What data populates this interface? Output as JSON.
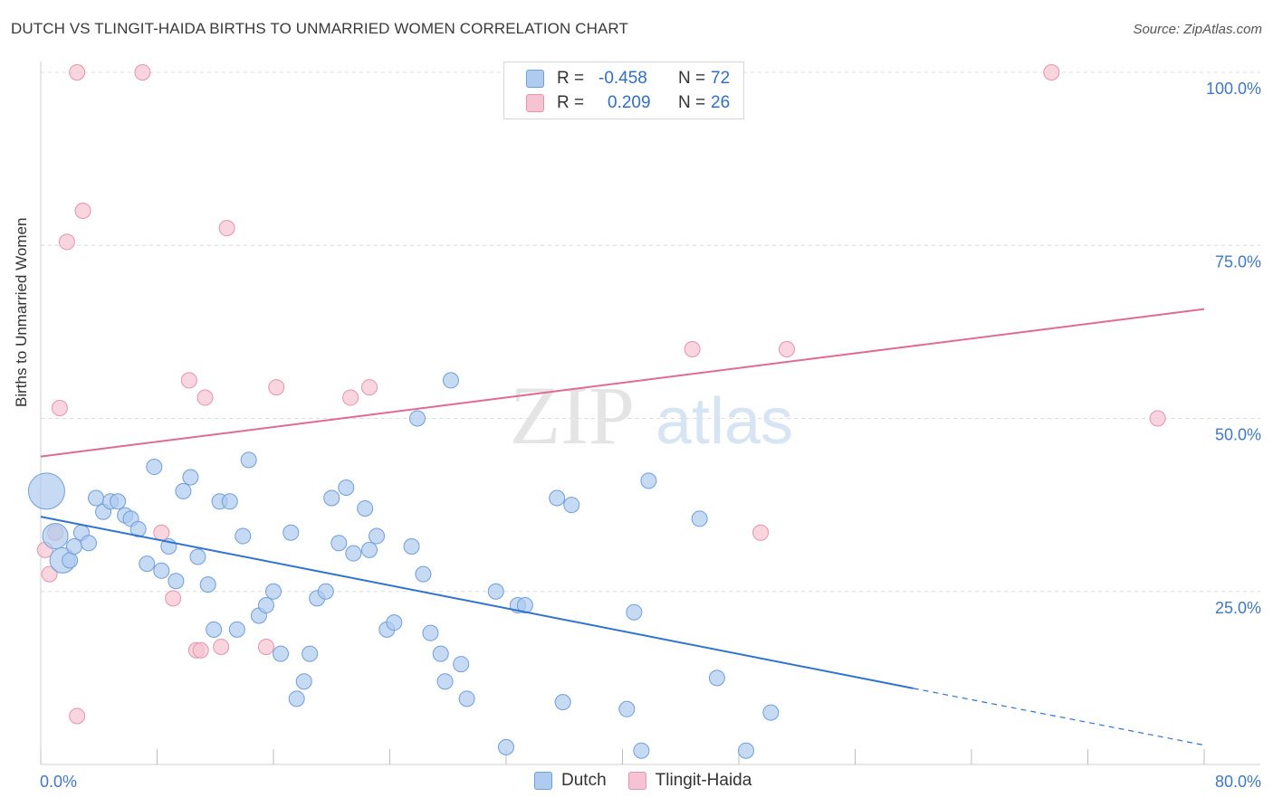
{
  "title": "DUTCH VS TLINGIT-HAIDA BIRTHS TO UNMARRIED WOMEN CORRELATION CHART",
  "source": "Source: ZipAtlas.com",
  "watermark": {
    "zip": "ZIP",
    "atlas": "atlas"
  },
  "legend": {
    "rows": [
      {
        "r_label": "R =",
        "r_value": "-0.458",
        "n_label": "N =",
        "n_value": "72"
      },
      {
        "r_label": "R =",
        "r_value": "0.209",
        "n_label": "N =",
        "n_value": "26"
      }
    ]
  },
  "bottom_legend": {
    "dutch": "Dutch",
    "tlingit": "Tlingit-Haida"
  },
  "colors": {
    "dutch_fill": "#aecbf0",
    "dutch_stroke": "#6f9fd8",
    "dutch_line": "#2f73cf",
    "tlingit_fill": "#f6c3d2",
    "tlingit_stroke": "#e693ad",
    "tlingit_line": "#e06a95",
    "tick_label": "#3f78c8",
    "grid": "#dcdcdc"
  },
  "chart_data": {
    "type": "scatter",
    "title": "DUTCH VS TLINGIT-HAIDA BIRTHS TO UNMARRIED WOMEN CORRELATION CHART",
    "xlabel": "",
    "ylabel": "Births to Unmarried Women",
    "xlim": [
      0,
      80
    ],
    "ylim": [
      0,
      102
    ],
    "x_tick_labels": [
      "0.0%",
      "80.0%"
    ],
    "y_ticks": [
      25,
      50,
      75,
      100
    ],
    "y_tick_labels": [
      "25.0%",
      "50.0%",
      "75.0%",
      "100.0%"
    ],
    "series": [
      {
        "name": "Dutch",
        "trend": {
          "x0": 0,
          "y0": 35.8,
          "x1": 60,
          "y1": 11.0,
          "dash_to_x": 80,
          "dash_to_y": 2.8
        },
        "points": [
          [
            0.4,
            39.5,
            3
          ],
          [
            1.0,
            33,
            2
          ],
          [
            1.5,
            29.5,
            2
          ],
          [
            2.0,
            29.5,
            1
          ],
          [
            2.3,
            31.5,
            1
          ],
          [
            2.8,
            33.5,
            1
          ],
          [
            3.3,
            32,
            1
          ],
          [
            3.8,
            38.5,
            1
          ],
          [
            4.3,
            36.5,
            1
          ],
          [
            4.8,
            38,
            1
          ],
          [
            5.3,
            38,
            1
          ],
          [
            5.8,
            36,
            1
          ],
          [
            6.2,
            35.5,
            1
          ],
          [
            6.7,
            34,
            1
          ],
          [
            7.3,
            29,
            1
          ],
          [
            7.8,
            43,
            1
          ],
          [
            8.3,
            28,
            1
          ],
          [
            8.8,
            31.5,
            1
          ],
          [
            9.3,
            26.5,
            1
          ],
          [
            9.8,
            39.5,
            1
          ],
          [
            10.3,
            41.5,
            1
          ],
          [
            10.8,
            30,
            1
          ],
          [
            11.5,
            26,
            1
          ],
          [
            11.9,
            19.5,
            1
          ],
          [
            12.3,
            38,
            1
          ],
          [
            13.0,
            38,
            1
          ],
          [
            13.5,
            19.5,
            1
          ],
          [
            13.9,
            33,
            1
          ],
          [
            14.3,
            44,
            1
          ],
          [
            15.0,
            21.5,
            1
          ],
          [
            15.5,
            23,
            1
          ],
          [
            16.0,
            25,
            1
          ],
          [
            16.5,
            16,
            1
          ],
          [
            17.2,
            33.5,
            1
          ],
          [
            17.6,
            9.5,
            1
          ],
          [
            18.1,
            12,
            1
          ],
          [
            18.5,
            16,
            1
          ],
          [
            19.0,
            24,
            1
          ],
          [
            19.6,
            25,
            1
          ],
          [
            20.0,
            38.5,
            1
          ],
          [
            20.5,
            32,
            1
          ],
          [
            21.0,
            40,
            1
          ],
          [
            21.5,
            30.5,
            1
          ],
          [
            22.3,
            37,
            1
          ],
          [
            22.6,
            31,
            1
          ],
          [
            23.1,
            33,
            1
          ],
          [
            23.8,
            19.5,
            1
          ],
          [
            24.3,
            20.5,
            1
          ],
          [
            25.5,
            31.5,
            1
          ],
          [
            25.9,
            50,
            1
          ],
          [
            26.3,
            27.5,
            1
          ],
          [
            26.8,
            19,
            1
          ],
          [
            27.5,
            16,
            1
          ],
          [
            27.8,
            12,
            1
          ],
          [
            28.2,
            55.5,
            1
          ],
          [
            28.9,
            14.5,
            1
          ],
          [
            29.3,
            9.5,
            1
          ],
          [
            31.3,
            25,
            1
          ],
          [
            32.0,
            2.5,
            1
          ],
          [
            32.8,
            23,
            1
          ],
          [
            33.3,
            23,
            1
          ],
          [
            35.5,
            38.5,
            1
          ],
          [
            35.9,
            9,
            1
          ],
          [
            36.5,
            37.5,
            1
          ],
          [
            40.3,
            8,
            1
          ],
          [
            40.8,
            22,
            1
          ],
          [
            41.3,
            2,
            1
          ],
          [
            41.8,
            41,
            1
          ],
          [
            45.3,
            35.5,
            1
          ],
          [
            46.5,
            12.5,
            1
          ],
          [
            48.5,
            2,
            1
          ],
          [
            50.2,
            7.5,
            1
          ]
        ]
      },
      {
        "name": "Tlingit-Haida",
        "trend": {
          "x0": 0,
          "y0": 44.5,
          "x1": 80,
          "y1": 65.8
        },
        "points": [
          [
            0.3,
            31,
            1
          ],
          [
            0.6,
            27.5,
            1
          ],
          [
            1.0,
            33.5,
            1
          ],
          [
            1.3,
            51.5,
            1
          ],
          [
            1.8,
            75.5,
            1
          ],
          [
            2.5,
            100,
            1
          ],
          [
            2.5,
            7,
            1
          ],
          [
            2.9,
            80,
            1
          ],
          [
            7.0,
            100,
            1
          ],
          [
            8.3,
            33.5,
            1
          ],
          [
            9.1,
            24,
            1
          ],
          [
            10.2,
            55.5,
            1
          ],
          [
            10.7,
            16.5,
            1
          ],
          [
            11.0,
            16.5,
            1
          ],
          [
            11.3,
            53,
            1
          ],
          [
            12.4,
            17,
            1
          ],
          [
            12.8,
            77.5,
            1
          ],
          [
            15.5,
            17,
            1
          ],
          [
            16.2,
            54.5,
            1
          ],
          [
            21.3,
            53,
            1
          ],
          [
            22.6,
            54.5,
            1
          ],
          [
            44.8,
            60,
            1
          ],
          [
            49.5,
            33.5,
            1
          ],
          [
            51.3,
            60,
            1
          ],
          [
            69.5,
            100,
            1
          ],
          [
            76.8,
            50,
            1
          ]
        ]
      }
    ]
  }
}
